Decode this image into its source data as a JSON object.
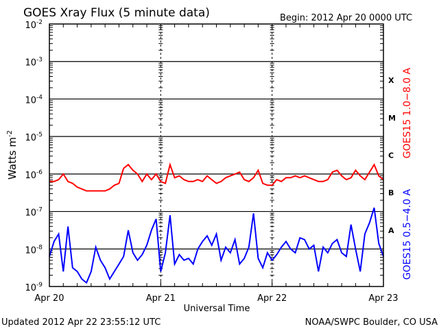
{
  "chart_data": {
    "type": "line",
    "title": "GOES Xray Flux (5 minute data)",
    "begin_label": "Begin:  2012 Apr 20 0000 UTC",
    "xlabel": "Universal Time",
    "ylabel": "Watts m",
    "ylabel_sup": "-2",
    "y_scale": "log",
    "ylim_exponents": [
      -9,
      -2
    ],
    "y_ticks": [
      {
        "base": "10",
        "exp": "-2"
      },
      {
        "base": "10",
        "exp": "-3"
      },
      {
        "base": "10",
        "exp": "-4"
      },
      {
        "base": "10",
        "exp": "-5"
      },
      {
        "base": "10",
        "exp": "-6"
      },
      {
        "base": "10",
        "exp": "-7"
      },
      {
        "base": "10",
        "exp": "-8"
      },
      {
        "base": "10",
        "exp": "-9"
      }
    ],
    "x_unit": "hours since 2012 Apr 20 0000 UTC",
    "xlim": [
      0,
      72
    ],
    "x_ticks": [
      {
        "label": "Apr 20",
        "hour": 0
      },
      {
        "label": "Apr 21",
        "hour": 24
      },
      {
        "label": "Apr 22",
        "hour": 48
      },
      {
        "label": "Apr 23",
        "hour": 72
      }
    ],
    "flare_classes": [
      "X",
      "M",
      "C",
      "B",
      "A"
    ],
    "grid": true,
    "series": [
      {
        "name": "GOES15 1.0−8.0 A",
        "color": "#ff0000",
        "value_encoding": "log10 of flux (W m^-2), hourly",
        "values": [
          -6.2,
          -6.2,
          -6.15,
          -6.0,
          -6.2,
          -6.25,
          -6.35,
          -6.4,
          -6.45,
          -6.45,
          -6.45,
          -6.45,
          -6.45,
          -6.4,
          -6.3,
          -6.25,
          -5.85,
          -5.75,
          -5.9,
          -6.0,
          -6.2,
          -6.0,
          -6.15,
          -6.0,
          -6.2,
          -6.25,
          -5.75,
          -6.1,
          -6.05,
          -6.15,
          -6.2,
          -6.2,
          -6.15,
          -6.2,
          -6.05,
          -6.15,
          -6.25,
          -6.2,
          -6.1,
          -6.05,
          -6.0,
          -5.95,
          -6.15,
          -6.2,
          -6.1,
          -5.9,
          -6.25,
          -6.3,
          -6.3,
          -6.15,
          -6.2,
          -6.1,
          -6.1,
          -6.05,
          -6.1,
          -6.05,
          -6.1,
          -6.15,
          -6.2,
          -6.2,
          -6.15,
          -5.95,
          -5.9,
          -6.05,
          -6.15,
          -6.1,
          -5.9,
          -6.05,
          -6.15,
          -5.95,
          -5.75,
          -6.05,
          -6.15
        ]
      },
      {
        "name": "GOES15 0.5−4.0 A",
        "color": "#0000ff",
        "value_encoding": "log10 of flux (W m^-2), hourly",
        "values": [
          -8.2,
          -7.8,
          -7.6,
          -8.6,
          -7.4,
          -8.5,
          -8.6,
          -8.8,
          -8.9,
          -8.6,
          -7.95,
          -8.3,
          -8.5,
          -8.8,
          -8.6,
          -8.4,
          -8.2,
          -7.5,
          -8.1,
          -8.3,
          -8.15,
          -7.9,
          -7.5,
          -7.2,
          -8.6,
          -8.1,
          -7.1,
          -8.4,
          -8.15,
          -8.3,
          -8.25,
          -8.4,
          -8.0,
          -7.8,
          -7.65,
          -7.9,
          -7.6,
          -8.3,
          -7.95,
          -8.1,
          -7.75,
          -8.4,
          -8.25,
          -7.95,
          -7.05,
          -8.25,
          -8.5,
          -8.1,
          -8.3,
          -8.15,
          -7.95,
          -7.8,
          -8.0,
          -8.1,
          -7.7,
          -7.75,
          -8.0,
          -7.9,
          -8.6,
          -7.95,
          -8.1,
          -7.85,
          -7.75,
          -8.1,
          -8.2,
          -7.35,
          -8.0,
          -8.6,
          -7.6,
          -7.3,
          -6.9,
          -7.85,
          -8.2
        ]
      }
    ]
  },
  "footer": {
    "updated": "Updated 2012 Apr 22 23:55:12 UTC",
    "credit": "NOAA/SWPC Boulder, CO USA"
  }
}
